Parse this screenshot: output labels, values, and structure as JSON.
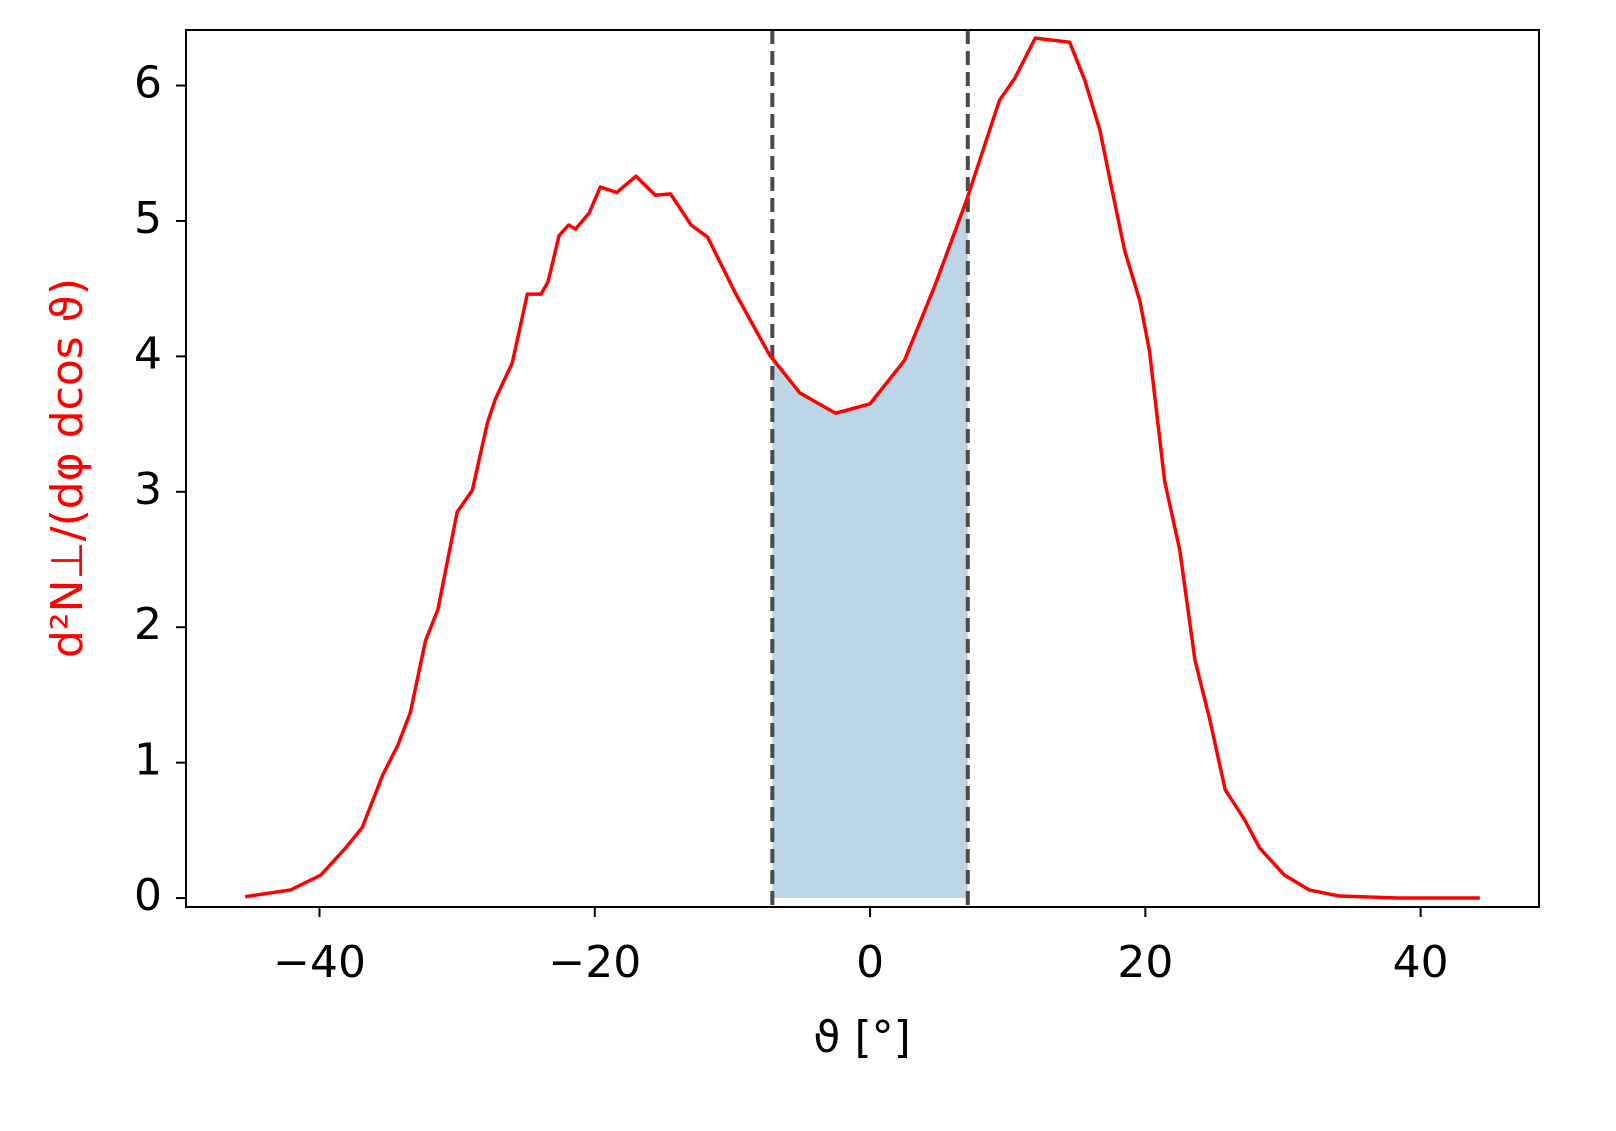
{
  "chart_data": {
    "type": "line",
    "x_label": "ϑ [°]",
    "y_label": "d²N⊥/(dφ dcos ϑ)",
    "x": [
      -45.4,
      -42.1,
      -39.9,
      -38.1,
      -36.9,
      -35.4,
      -34.3,
      -33.4,
      -32.3,
      -31.4,
      -30.0,
      -28.9,
      -27.8,
      -27.2,
      -26.0,
      -24.9,
      -23.9,
      -23.4,
      -22.6,
      -21.9,
      -21.4,
      -20.4,
      -19.6,
      -18.4,
      -17.6,
      -17.0,
      -15.6,
      -14.5,
      -13.0,
      -11.8,
      -9.8,
      -7.3,
      -5.1,
      -2.5,
      0,
      2.5,
      4.7,
      7.0,
      9.4,
      10.5,
      12.0,
      14.5,
      15.6,
      16.7,
      17.6,
      18.5,
      19.6,
      20.3,
      21.4,
      22.5,
      23.6,
      24.7,
      25.8,
      27.2,
      28.3,
      30.1,
      31.9,
      34.1,
      38.5,
      44.3
    ],
    "series": [
      {
        "name": "d²N⊥/(dφ dcos ϑ)",
        "color": "#ff0000",
        "values": [
          0.01,
          0.06,
          0.17,
          0.37,
          0.52,
          0.91,
          1.13,
          1.37,
          1.9,
          2.13,
          2.85,
          3.01,
          3.51,
          3.69,
          3.95,
          4.46,
          4.46,
          4.55,
          4.89,
          4.97,
          4.94,
          5.06,
          5.25,
          5.21,
          5.28,
          5.33,
          5.19,
          5.2,
          4.97,
          4.88,
          4.47,
          4.01,
          3.73,
          3.58,
          3.65,
          3.97,
          4.52,
          5.15,
          5.89,
          6.05,
          6.35,
          6.32,
          6.04,
          5.67,
          5.22,
          4.78,
          4.41,
          4.04,
          3.08,
          2.57,
          1.76,
          1.31,
          0.8,
          0.58,
          0.37,
          0.17,
          0.06,
          0.015,
          0.0,
          0.0
        ]
      }
    ],
    "shade": [
      -7.1,
      7.1
    ],
    "shade_color": "#bcd6e8",
    "vline_color": "#4a4a4a",
    "xlim": [
      -49.7,
      48.6
    ],
    "ylim": [
      -0.066,
      6.41
    ],
    "xticks": [
      {
        "value": -40,
        "label": "−40"
      },
      {
        "value": -20,
        "label": "−20"
      },
      0,
      20,
      40
    ],
    "yticks": [
      0,
      1,
      2,
      3,
      4,
      5,
      6
    ],
    "grid": false
  }
}
